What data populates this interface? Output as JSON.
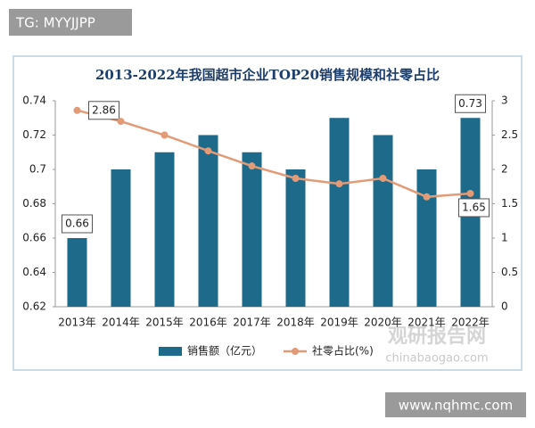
{
  "watermarks": {
    "top_left": "TG: MYYJJPP",
    "bottom_right": "www.nqhmc.com",
    "logo": "观研报告网",
    "logo_url": "chinabaogao.com"
  },
  "chart_data": {
    "type": "bar-line",
    "title": "2013-2022年我国超市企业TOP20销售规模和社零占比",
    "categories": [
      "2013年",
      "2014年",
      "2015年",
      "2016年",
      "2017年",
      "2018年",
      "2019年",
      "2020年",
      "2021年",
      "2022年"
    ],
    "series": [
      {
        "name": "销售额（亿元）",
        "type": "bar",
        "color": "#1d6a8a",
        "values": [
          0.66,
          0.7,
          0.71,
          0.72,
          0.71,
          0.7,
          0.73,
          0.72,
          0.7,
          0.73
        ]
      },
      {
        "name": "社零占比(%)",
        "type": "line",
        "axis": "y2",
        "color": "#e39a76",
        "values": [
          2.86,
          2.7,
          2.5,
          2.27,
          2.05,
          1.87,
          1.79,
          1.87,
          1.6,
          1.65
        ]
      }
    ],
    "ylim": [
      0.62,
      0.74
    ],
    "yticks": [
      0.62,
      0.64,
      0.66,
      0.68,
      0.7,
      0.72,
      0.74
    ],
    "y2lim": [
      0,
      3
    ],
    "y2ticks": [
      0,
      0.5,
      1,
      1.5,
      2,
      2.5,
      3
    ]
  }
}
